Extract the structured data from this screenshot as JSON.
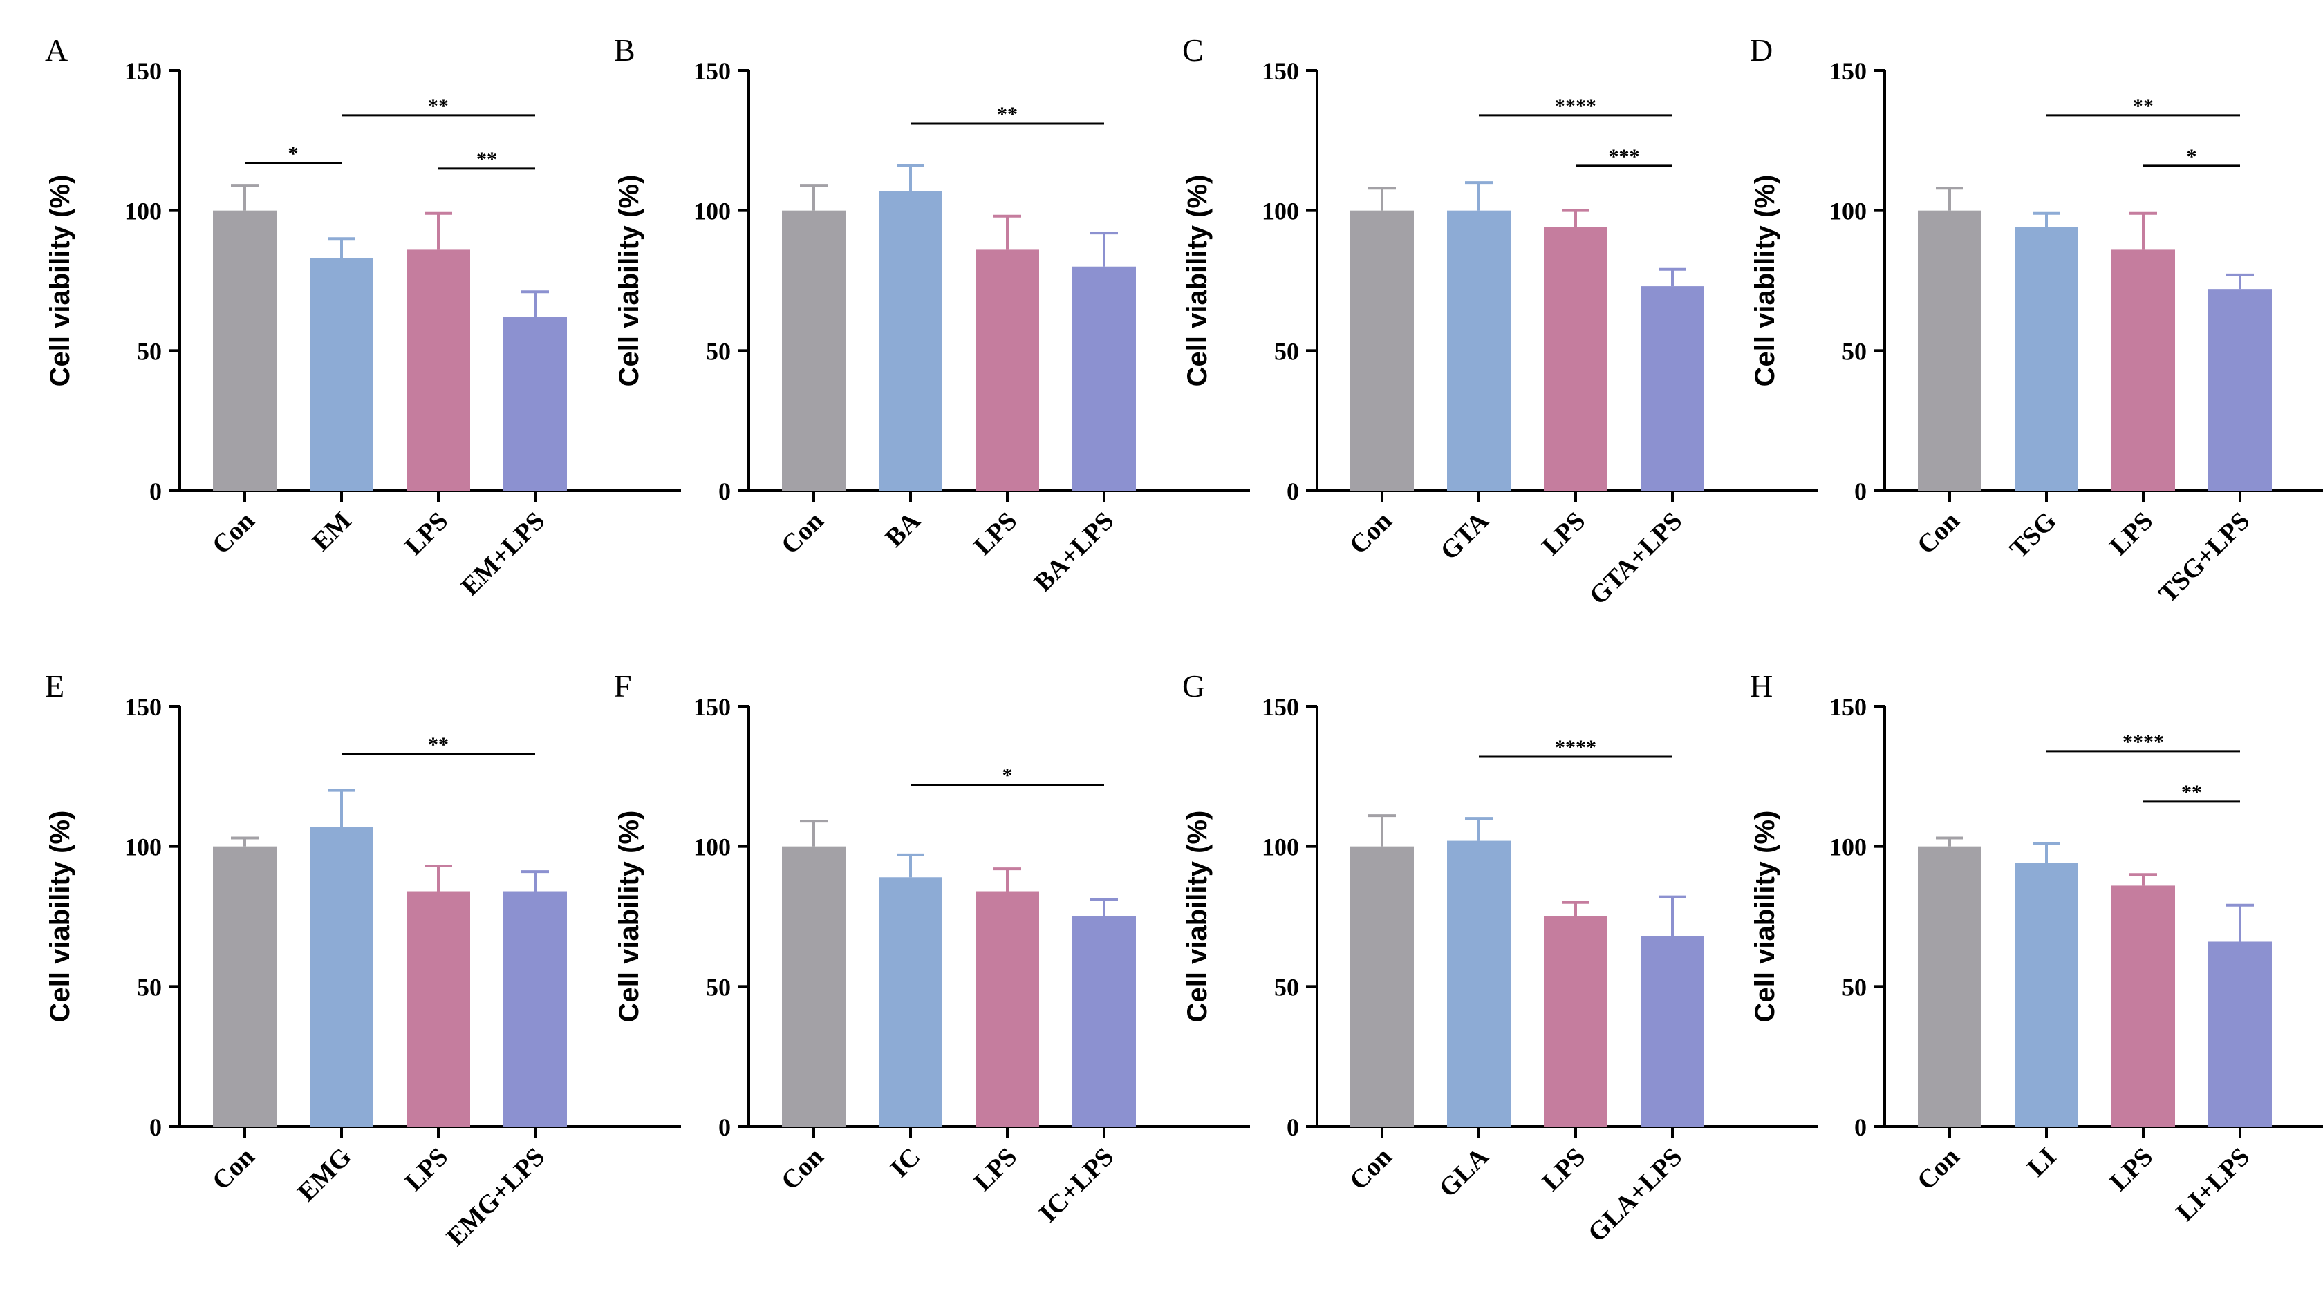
{
  "colors": {
    "con": "#a3a1a6",
    "treat": "#8dabd5",
    "lps": "#c57d9e",
    "combo": "#8c91d0",
    "axis": "#000000"
  },
  "chart_data": [
    {
      "type": "bar",
      "panel": "A",
      "title": "A",
      "ylabel": "Cell viability (%)",
      "xlabel": "",
      "ylim": [
        0,
        150
      ],
      "yticks": [
        0,
        50,
        100,
        150
      ],
      "categories": [
        "Con",
        "EM",
        "LPS",
        "EM+LPS"
      ],
      "values": [
        100,
        83,
        86,
        62
      ],
      "errors": [
        9,
        7,
        13,
        9
      ],
      "significance": [
        {
          "from": 0,
          "to": 1,
          "label": "*",
          "y": 117
        },
        {
          "from": 1,
          "to": 3,
          "label": "**",
          "y": 134
        },
        {
          "from": 2,
          "to": 3,
          "label": "**",
          "y": 115
        }
      ]
    },
    {
      "type": "bar",
      "panel": "B",
      "title": "B",
      "ylabel": "Cell viability (%)",
      "xlabel": "",
      "ylim": [
        0,
        150
      ],
      "yticks": [
        0,
        50,
        100,
        150
      ],
      "categories": [
        "Con",
        "BA",
        "LPS",
        "BA+LPS"
      ],
      "values": [
        100,
        107,
        86,
        80
      ],
      "errors": [
        9,
        9,
        12,
        12
      ],
      "significance": [
        {
          "from": 1,
          "to": 3,
          "label": "**",
          "y": 131
        }
      ]
    },
    {
      "type": "bar",
      "panel": "C",
      "title": "C",
      "ylabel": "Cell viability (%)",
      "xlabel": "",
      "ylim": [
        0,
        150
      ],
      "yticks": [
        0,
        50,
        100,
        150
      ],
      "categories": [
        "Con",
        "GTA",
        "LPS",
        "GTA+LPS"
      ],
      "values": [
        100,
        100,
        94,
        73
      ],
      "errors": [
        8,
        10,
        6,
        6
      ],
      "significance": [
        {
          "from": 1,
          "to": 3,
          "label": "****",
          "y": 134
        },
        {
          "from": 2,
          "to": 3,
          "label": "***",
          "y": 116
        }
      ]
    },
    {
      "type": "bar",
      "panel": "D",
      "title": "D",
      "ylabel": "Cell viability (%)",
      "xlabel": "",
      "ylim": [
        0,
        150
      ],
      "yticks": [
        0,
        50,
        100,
        150
      ],
      "categories": [
        "Con",
        "TSG",
        "LPS",
        "TSG+LPS"
      ],
      "values": [
        100,
        94,
        86,
        72
      ],
      "errors": [
        8,
        5,
        13,
        5
      ],
      "significance": [
        {
          "from": 1,
          "to": 3,
          "label": "**",
          "y": 134
        },
        {
          "from": 2,
          "to": 3,
          "label": "*",
          "y": 116
        }
      ]
    },
    {
      "type": "bar",
      "panel": "E",
      "title": "E",
      "ylabel": "Cell viability (%)",
      "xlabel": "",
      "ylim": [
        0,
        150
      ],
      "yticks": [
        0,
        50,
        100,
        150
      ],
      "categories": [
        "Con",
        "EMG",
        "LPS",
        "EMG+LPS"
      ],
      "values": [
        100,
        107,
        84,
        84
      ],
      "errors": [
        3,
        13,
        9,
        7
      ],
      "significance": [
        {
          "from": 1,
          "to": 3,
          "label": "**",
          "y": 133
        }
      ]
    },
    {
      "type": "bar",
      "panel": "F",
      "title": "F",
      "ylabel": "Cell viability (%)",
      "xlabel": "",
      "ylim": [
        0,
        150
      ],
      "yticks": [
        0,
        50,
        100,
        150
      ],
      "categories": [
        "Con",
        "IC",
        "LPS",
        "IC+LPS"
      ],
      "values": [
        100,
        89,
        84,
        75
      ],
      "errors": [
        9,
        8,
        8,
        6
      ],
      "significance": [
        {
          "from": 1,
          "to": 3,
          "label": "*",
          "y": 122
        }
      ]
    },
    {
      "type": "bar",
      "panel": "G",
      "title": "G",
      "ylabel": "Cell viability (%)",
      "xlabel": "",
      "ylim": [
        0,
        150
      ],
      "yticks": [
        0,
        50,
        100,
        150
      ],
      "categories": [
        "Con",
        "GLA",
        "LPS",
        "GLA+LPS"
      ],
      "values": [
        100,
        102,
        75,
        68
      ],
      "errors": [
        11,
        8,
        5,
        14
      ],
      "significance": [
        {
          "from": 1,
          "to": 3,
          "label": "****",
          "y": 132
        }
      ]
    },
    {
      "type": "bar",
      "panel": "H",
      "title": "H",
      "ylabel": "Cell viability (%)",
      "xlabel": "",
      "ylim": [
        0,
        150
      ],
      "yticks": [
        0,
        50,
        100,
        150
      ],
      "categories": [
        "Con",
        "LI",
        "LPS",
        "LI+LPS"
      ],
      "values": [
        100,
        94,
        86,
        66
      ],
      "errors": [
        3,
        7,
        4,
        13
      ],
      "significance": [
        {
          "from": 1,
          "to": 3,
          "label": "****",
          "y": 134
        },
        {
          "from": 2,
          "to": 3,
          "label": "**",
          "y": 116
        }
      ]
    }
  ]
}
